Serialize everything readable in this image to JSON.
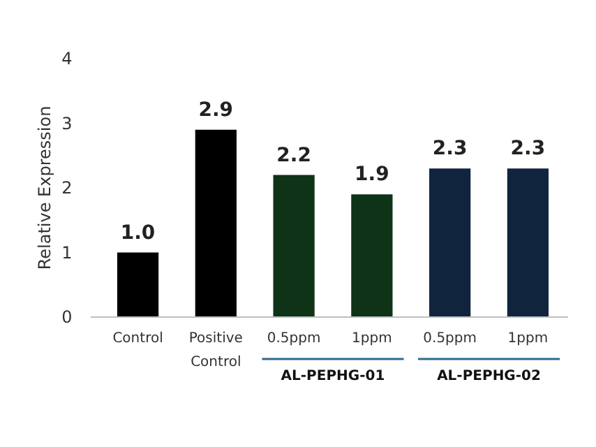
{
  "chart_data": {
    "type": "bar",
    "ylabel": "Relative Expression",
    "categories": [
      "Control",
      "Positive Control",
      "0.5ppm",
      "1ppm",
      "0.5ppm",
      "1ppm"
    ],
    "values": [
      1.0,
      2.9,
      2.2,
      1.9,
      2.3,
      2.3
    ],
    "colors": [
      "#000000",
      "#000000",
      "#0f3317",
      "#0f3317",
      "#10243e",
      "#10243e"
    ],
    "data_labels": true,
    "value_labels": [
      "1.0",
      "2.9",
      "2.2",
      "1.9",
      "2.3",
      "2.3"
    ],
    "ylim": [
      0,
      4
    ],
    "yticks": [
      0,
      1,
      2,
      3,
      4
    ],
    "annotations": [
      "AL-PEPHG-01",
      "AL-PEPHG-02"
    ],
    "grid": false
  }
}
